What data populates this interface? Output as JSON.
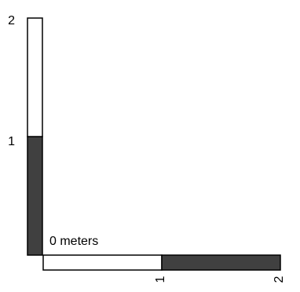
{
  "scale_bar": {
    "origin_label": "0 meters",
    "vertical": {
      "tick_labels": [
        "1",
        "2"
      ],
      "segments": [
        {
          "from": 0,
          "to": 1,
          "fill": "#404040"
        },
        {
          "from": 1,
          "to": 2,
          "fill": "#ffffff"
        }
      ]
    },
    "horizontal": {
      "tick_labels": [
        "1",
        "2"
      ],
      "segments": [
        {
          "from": 0,
          "to": 1,
          "fill": "#ffffff"
        },
        {
          "from": 1,
          "to": 2,
          "fill": "#404040"
        }
      ]
    },
    "colors": {
      "outline": "#000000",
      "dark_fill": "#404040",
      "light_fill": "#ffffff"
    }
  }
}
